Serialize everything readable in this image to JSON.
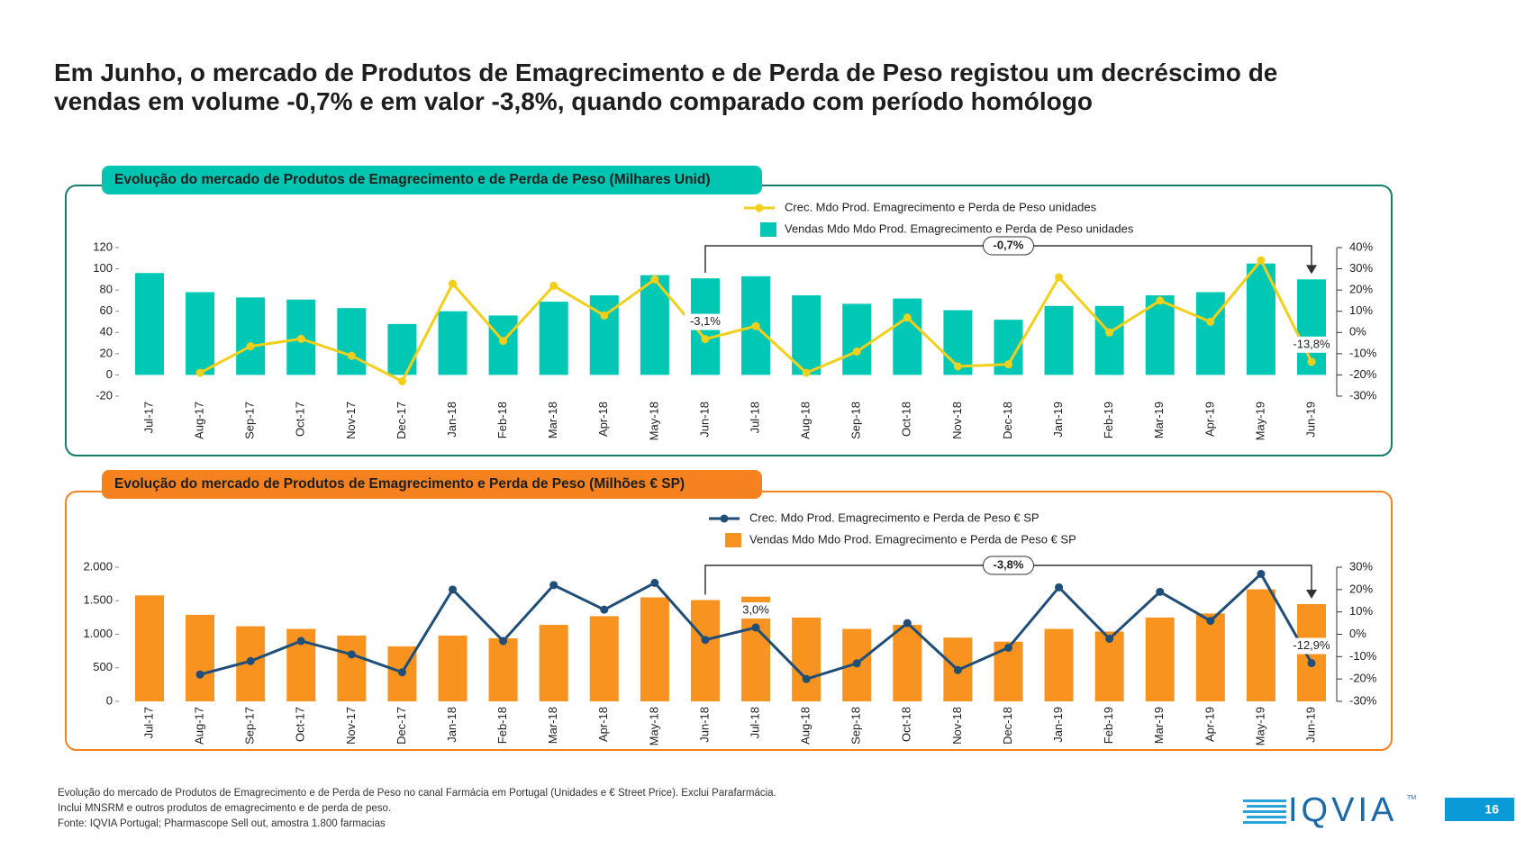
{
  "title_lines": [
    "Em Junho, o mercado de Produtos de Emagrecimento e de Perda de Peso registou um decréscimo de",
    "vendas em volume -0,7% e em valor -3,8%, quando comparado com período homólogo"
  ],
  "chart_data": [
    {
      "type": "combo",
      "title": "Evolução do mercado de Produtos de Emagrecimento e de Perda de Peso (Milhares Unid)",
      "categories": [
        "Jul-17",
        "Aug-17",
        "Sep-17",
        "Oct-17",
        "Nov-17",
        "Dec-17",
        "Jan-18",
        "Feb-18",
        "Mar-18",
        "Apr-18",
        "May-18",
        "Jun-18",
        "Jul-18",
        "Aug-18",
        "Sep-18",
        "Oct-18",
        "Nov-18",
        "Dec-18",
        "Jan-19",
        "Feb-19",
        "Mar-19",
        "Apr-19",
        "May-19",
        "Jun-19"
      ],
      "series": [
        {
          "name": "Crec. Mdo Prod. Emagrecimento e Perda de Peso unidades",
          "kind": "line",
          "axis": "y2",
          "color": "#f2cf1a",
          "values": [
            null,
            -19,
            -6.5,
            -3,
            -11,
            -23,
            23,
            -4,
            22,
            8,
            25,
            -3.1,
            3,
            -19,
            -9,
            7,
            -16,
            -15,
            26,
            0,
            15,
            5,
            34,
            -13.8
          ],
          "value_labels": [
            null,
            null,
            null,
            null,
            null,
            null,
            null,
            null,
            null,
            null,
            null,
            "-3,1%",
            null,
            null,
            null,
            null,
            null,
            null,
            null,
            null,
            null,
            null,
            null,
            "-13,8%"
          ]
        },
        {
          "name": "Vendas Mdo Mdo Prod. Emagrecimento e Perda de Peso unidades",
          "kind": "bar",
          "color": "#00c8b4",
          "values": [
            96,
            78,
            73,
            71,
            63,
            48,
            60,
            56,
            69,
            75,
            94,
            91,
            93,
            75,
            67,
            72,
            61,
            52,
            65,
            65,
            75,
            78,
            105,
            90
          ]
        }
      ],
      "ylim": [
        -20,
        120
      ],
      "yticks": [
        -20,
        0,
        20,
        40,
        60,
        80,
        100,
        120
      ],
      "y2lim": [
        -30,
        40
      ],
      "y2ticks": [
        {
          "value": -30,
          "label": "-30%"
        },
        {
          "value": -20,
          "label": "-20%"
        },
        {
          "value": -10,
          "label": "-10%"
        },
        {
          "value": 0,
          "label": "0%"
        },
        {
          "value": 10,
          "label": "10%"
        },
        {
          "value": 20,
          "label": "20%"
        },
        {
          "value": 30,
          "label": "30%"
        },
        {
          "value": 40,
          "label": "40%"
        }
      ],
      "annotation": "-0,7%"
    },
    {
      "type": "combo",
      "title": "Evolução do mercado de Produtos de Emagrecimento e Perda de Peso (Milhões € SP)",
      "categories": [
        "Jul-17",
        "Aug-17",
        "Sep-17",
        "Oct-17",
        "Nov-17",
        "Dec-17",
        "Jan-18",
        "Feb-18",
        "Mar-18",
        "Apr-18",
        "May-18",
        "Jun-18",
        "Jul-18",
        "Aug-18",
        "Sep-18",
        "Oct-18",
        "Nov-18",
        "Dec-18",
        "Jan-19",
        "Feb-19",
        "Mar-19",
        "Apr-19",
        "May-19",
        "Jun-19"
      ],
      "series": [
        {
          "name": "Crec. Mdo Prod. Emagrecimento e Perda de Peso € SP",
          "kind": "line",
          "axis": "y2",
          "color": "#1f4e79",
          "values": [
            null,
            -18,
            -12,
            -3,
            -9,
            -17,
            20,
            -3,
            22,
            11,
            23,
            -2.5,
            3.0,
            -20,
            -13,
            5,
            -16,
            -6,
            21,
            -2,
            19,
            6,
            27,
            -12.9
          ],
          "value_labels": [
            null,
            null,
            null,
            null,
            null,
            null,
            null,
            null,
            null,
            null,
            null,
            null,
            "3,0%",
            null,
            null,
            null,
            null,
            null,
            null,
            null,
            null,
            null,
            null,
            "-12,9%"
          ]
        },
        {
          "name": "Vendas Mdo Mdo Prod. Emagrecimento e Perda de Peso € SP",
          "kind": "bar",
          "color": "#f7931e",
          "values": [
            1580,
            1290,
            1120,
            1080,
            980,
            820,
            980,
            940,
            1140,
            1270,
            1550,
            1510,
            1560,
            1250,
            1080,
            1140,
            950,
            890,
            1080,
            1040,
            1250,
            1310,
            1670,
            1450
          ]
        }
      ],
      "ylim": [
        0,
        2000
      ],
      "yticks": [
        0,
        500,
        {
          "value": 1000,
          "label": "1.000"
        },
        {
          "value": 1500,
          "label": "1.500"
        },
        {
          "value": 2000,
          "label": "2.000"
        }
      ],
      "y2lim": [
        -30,
        30
      ],
      "y2ticks": [
        {
          "value": -30,
          "label": "-30%"
        },
        {
          "value": -20,
          "label": "-20%"
        },
        {
          "value": -10,
          "label": "-10%"
        },
        {
          "value": 0,
          "label": "0%"
        },
        {
          "value": 10,
          "label": "10%"
        },
        {
          "value": 20,
          "label": "20%"
        },
        {
          "value": 30,
          "label": "30%"
        }
      ],
      "annotation": "-3,8%"
    }
  ],
  "footnotes": [
    "Evolução do mercado de Produtos de Emagrecimento e de Perda de Peso no canal Farmácia em Portugal (Unidades e € Street Price). Exclui Parafarmácia.",
    "Inclui MNSRM e outros produtos de emagrecimento e de perda de peso.",
    "Fonte: IQVIA Portugal; Pharmascope Sell out, amostra 1.800 farmacias"
  ],
  "logo": "IQVIA",
  "logo_mark": "TM",
  "page_number": "16"
}
